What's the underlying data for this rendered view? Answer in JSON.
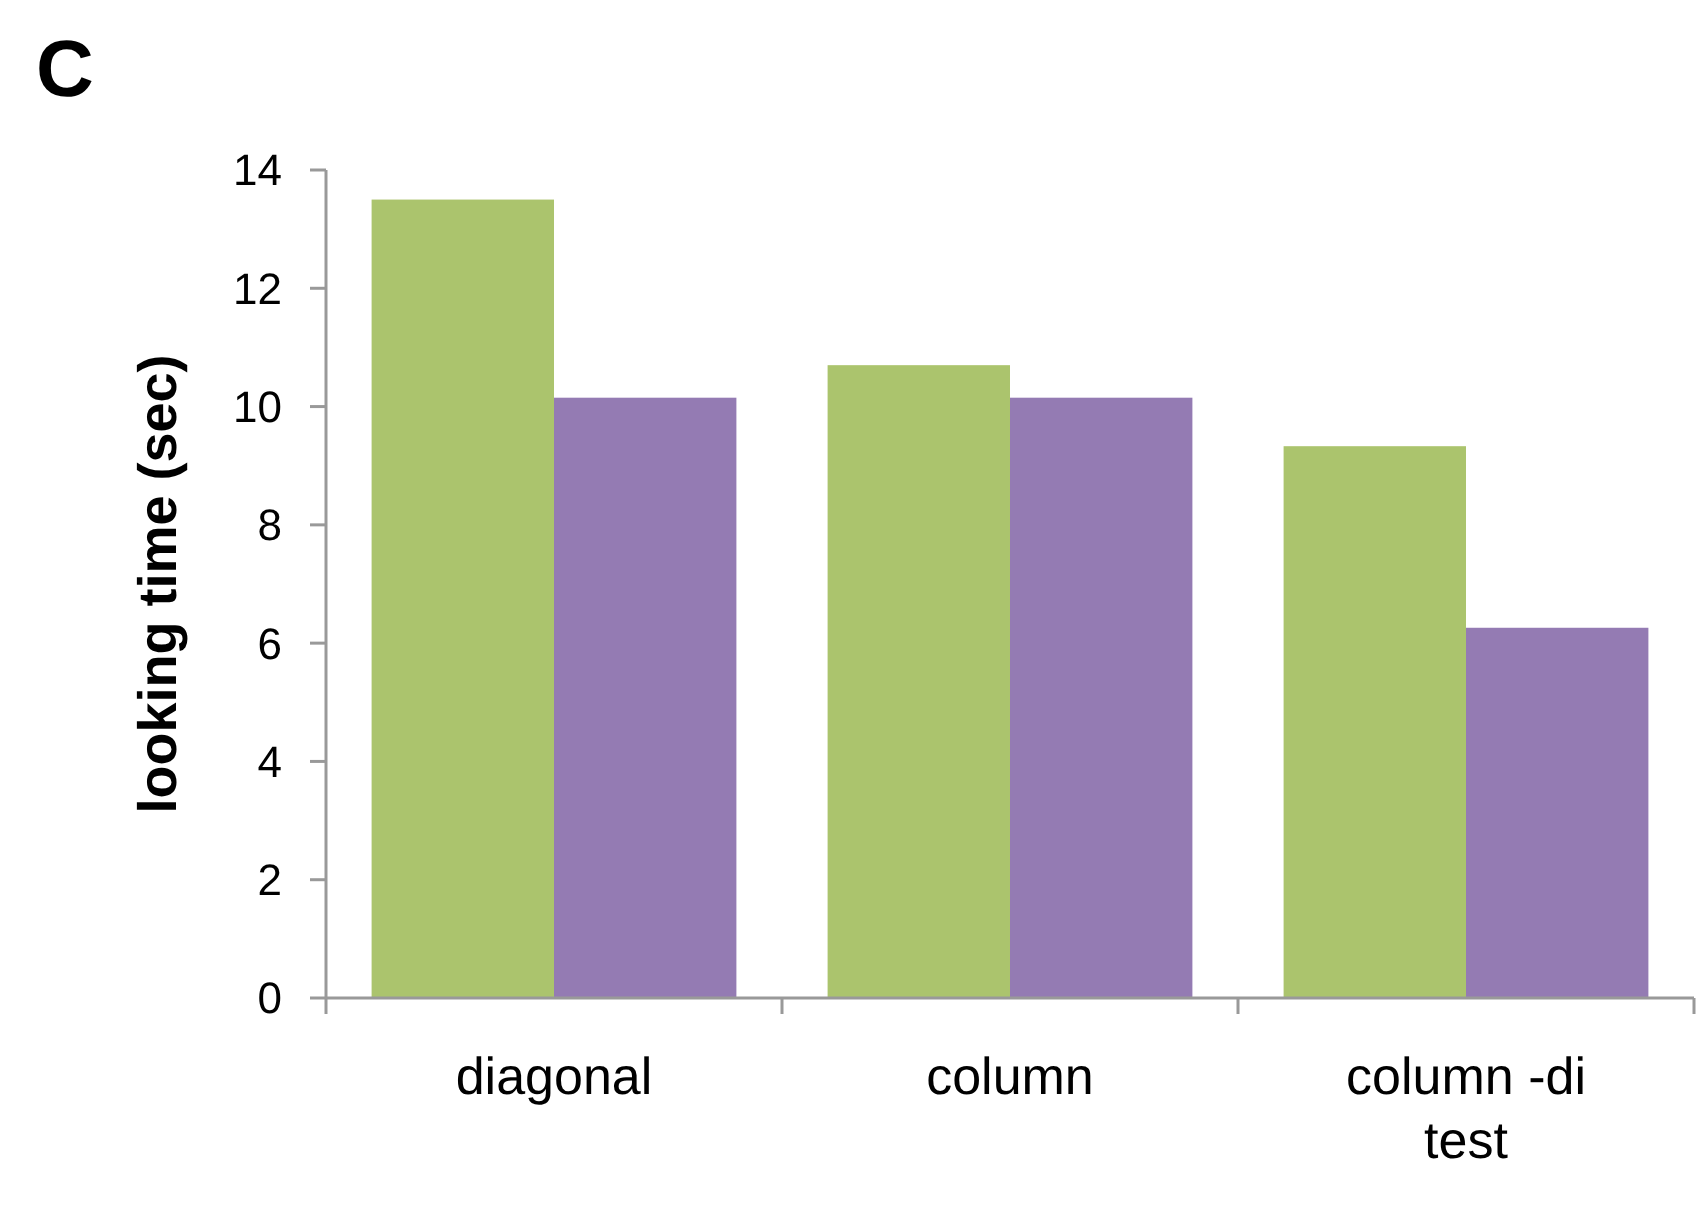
{
  "chart_data": {
    "type": "bar",
    "title": "C",
    "ylabel": "looking time (sec)",
    "categories": [
      "diagonal",
      "column",
      "column -di test"
    ],
    "series": [
      {
        "color": "#abc46d",
        "values": [
          13.5,
          10.7,
          9.33
        ]
      },
      {
        "color": "#947bb3",
        "values": [
          10.15,
          10.15,
          6.26
        ]
      }
    ],
    "ylim": [
      0,
      14
    ],
    "yticks": [
      0,
      2,
      4,
      6,
      8,
      10,
      12,
      14
    ]
  }
}
